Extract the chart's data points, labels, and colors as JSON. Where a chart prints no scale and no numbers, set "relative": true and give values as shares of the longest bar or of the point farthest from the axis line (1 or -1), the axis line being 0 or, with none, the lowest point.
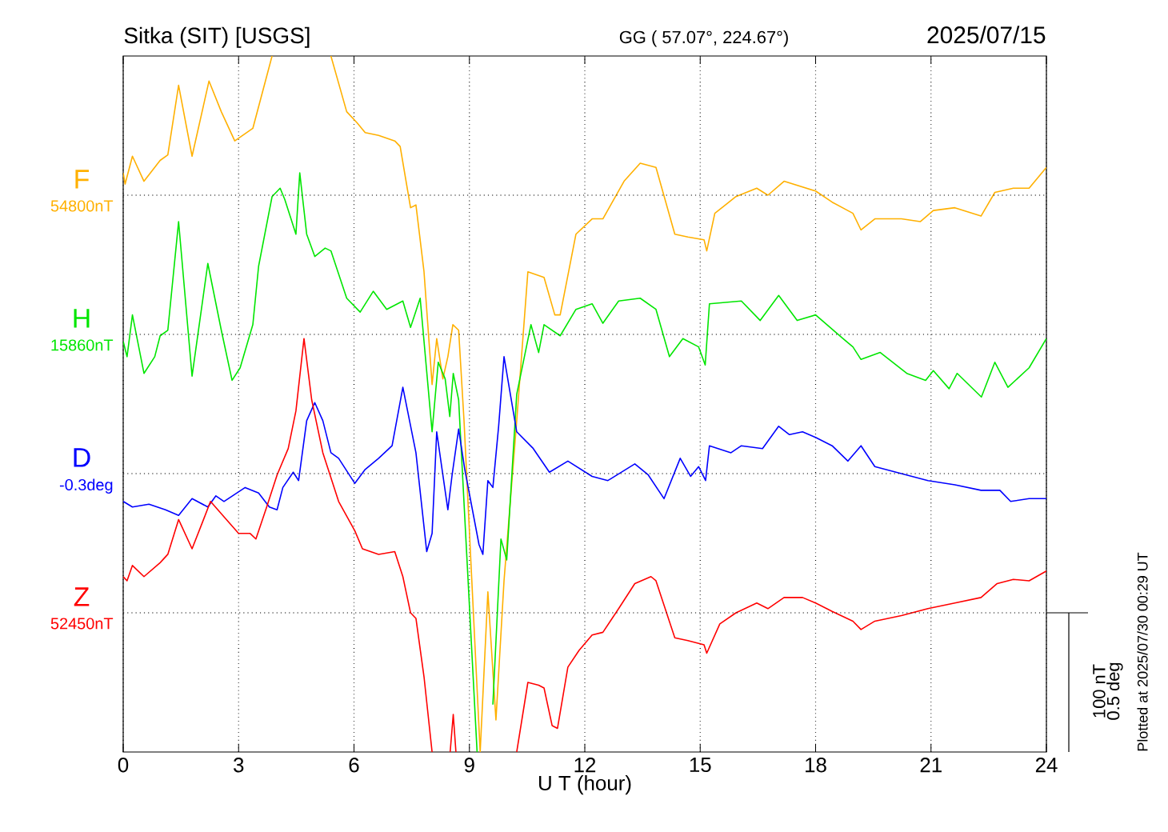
{
  "chart_data": {
    "type": "line",
    "relative": true,
    "title": "Sitka (SIT)  [USGS]",
    "subtitle": "GG ( 57.07°, 224.67°)",
    "xlabel": "U T (hour)",
    "annotations": [
      "2025/07/15",
      "100 nT",
      "0.5 deg",
      "Plotted at 2025/07/30 00:29 UT"
    ],
    "xlim": [
      0,
      24
    ],
    "grid": "x",
    "xticks": [
      0,
      3,
      6,
      9,
      12,
      15,
      18,
      21,
      24
    ],
    "ref_lines": [
      {
        "axis": "y",
        "value": 0.8,
        "label": "54800nT",
        "line_style": "dotted"
      },
      {
        "axis": "y",
        "value": 0.6,
        "label": "15860nT",
        "line_style": "dotted"
      },
      {
        "axis": "y",
        "value": 0.4,
        "label": "-0.3deg",
        "line_style": "dotted"
      },
      {
        "axis": "y",
        "value": 0.2,
        "label": "52450nT",
        "line_style": "dotted"
      }
    ],
    "series": [
      {
        "name": "F",
        "color": "#ffb000",
        "x": [
          0,
          0.05,
          0.24,
          0.54,
          0.96,
          1.16,
          1.44,
          1.79,
          2.23,
          2.55,
          2.9,
          3.37,
          3.87,
          4.6,
          5.4,
          5.81,
          6.08,
          6.29,
          6.64,
          7.06,
          7.2,
          7.47,
          7.61,
          7.82,
          8.03,
          8.15,
          8.31,
          8.44,
          8.57,
          8.72,
          8.86,
          9.28,
          9.48,
          9.69,
          9.9,
          10.23,
          10.52,
          10.94,
          11.22,
          11.36,
          11.77,
          12.19,
          12.47,
          13.02,
          13.44,
          13.85,
          14.34,
          14.68,
          15.1,
          15.17,
          15.38,
          15.93,
          16.47,
          16.76,
          17.18,
          18.0,
          18.43,
          18.97,
          19.18,
          19.54,
          20.23,
          20.72,
          21.06,
          21.62,
          22.3,
          22.66,
          23.14,
          23.55,
          24
        ],
        "values": [
          0.832,
          0.816,
          0.856,
          0.82,
          0.85,
          0.858,
          0.958,
          0.856,
          0.964,
          0.92,
          0.878,
          0.896,
          1,
          null,
          1,
          0.92,
          0.904,
          0.89,
          0.886,
          0.878,
          0.87,
          0.782,
          0.786,
          0.69,
          0.528,
          0.594,
          0.536,
          0.568,
          0.614,
          0.606,
          0.476,
          0,
          0.23,
          0.046,
          0.246,
          0.476,
          0.69,
          0.682,
          0.628,
          0.628,
          0.744,
          0.766,
          0.766,
          0.82,
          0.846,
          0.84,
          0.744,
          0.74,
          0.736,
          0.72,
          0.774,
          0.798,
          0.81,
          0.8,
          0.82,
          0.806,
          0.79,
          0.774,
          0.75,
          0.766,
          0.766,
          0.762,
          0.778,
          0.782,
          0.77,
          0.804,
          0.81,
          0.81,
          0.84
        ]
      },
      {
        "name": "H",
        "color": "#00e600",
        "x": [
          0,
          0.1,
          0.24,
          0.54,
          0.82,
          0.96,
          1.16,
          1.44,
          1.79,
          2.2,
          2.55,
          2.83,
          3.04,
          3.37,
          3.52,
          3.87,
          4.08,
          4.2,
          4.49,
          4.59,
          4.77,
          4.98,
          5.25,
          5.4,
          5.81,
          6.16,
          6.5,
          6.85,
          7.27,
          7.47,
          7.72,
          8.03,
          8.19,
          8.37,
          8.49,
          8.58,
          8.72,
          8.93,
          9.2,
          9.4,
          9.61,
          9.82,
          9.97,
          10.23,
          10.6,
          10.8,
          10.94,
          11.36,
          11.77,
          12.19,
          12.47,
          12.88,
          13.44,
          13.85,
          14.2,
          14.55,
          14.96,
          15.13,
          15.24,
          16.07,
          16.56,
          17.04,
          17.52,
          18.0,
          18.71,
          18.97,
          19.18,
          19.68,
          20.37,
          20.86,
          21.06,
          21.47,
          21.68,
          22.31,
          22.66,
          23.0,
          23.55,
          24
        ],
        "values": [
          0.59,
          0.568,
          0.628,
          0.544,
          0.568,
          0.598,
          0.606,
          0.762,
          0.54,
          0.702,
          0.606,
          0.534,
          0.552,
          0.614,
          0.698,
          0.798,
          0.81,
          0.794,
          0.744,
          0.832,
          0.744,
          0.712,
          0.724,
          0.72,
          0.652,
          0.632,
          0.662,
          0.636,
          0.648,
          0.61,
          0.652,
          0.46,
          0.56,
          0.536,
          0.482,
          0.544,
          0.506,
          0.284,
          0,
          null,
          0.068,
          0.306,
          0.276,
          0.514,
          0.614,
          0.574,
          0.614,
          0.598,
          0.636,
          0.644,
          0.616,
          0.648,
          0.652,
          0.636,
          0.568,
          0.594,
          0.582,
          0.556,
          0.644,
          0.648,
          0.62,
          0.656,
          0.62,
          0.628,
          0.594,
          0.582,
          0.564,
          0.574,
          0.544,
          0.534,
          0.548,
          0.522,
          0.544,
          0.51,
          0.56,
          0.524,
          0.552,
          0.594
        ]
      },
      {
        "name": "D",
        "color": "#0000ff",
        "x": [
          0,
          0.24,
          0.67,
          1.1,
          1.44,
          1.79,
          2.2,
          2.41,
          2.62,
          3.17,
          3.52,
          3.8,
          4.0,
          4.15,
          4.42,
          4.56,
          4.77,
          4.98,
          5.19,
          5.4,
          5.6,
          6.02,
          6.29,
          6.64,
          6.99,
          7.27,
          7.61,
          7.89,
          8.03,
          8.15,
          8.31,
          8.44,
          8.55,
          8.72,
          8.88,
          9.25,
          9.35,
          9.48,
          9.61,
          9.76,
          9.9,
          10.04,
          10.23,
          10.66,
          11.08,
          11.56,
          12.19,
          12.6,
          13.3,
          13.65,
          14.06,
          14.48,
          14.75,
          14.96,
          15.14,
          15.24,
          15.8,
          16.07,
          16.62,
          17.04,
          17.32,
          17.66,
          18.0,
          18.43,
          18.84,
          19.18,
          19.54,
          20.09,
          20.92,
          21.62,
          22.3,
          22.79,
          23.07,
          23.55,
          24
        ],
        "values": [
          0.36,
          0.352,
          0.356,
          0.348,
          0.34,
          0.364,
          0.352,
          0.368,
          0.36,
          0.38,
          0.372,
          0.352,
          0.348,
          0.38,
          0.402,
          0.39,
          0.476,
          0.502,
          0.476,
          0.43,
          0.422,
          0.386,
          0.406,
          0.422,
          0.44,
          0.524,
          0.43,
          0.288,
          0.314,
          0.46,
          0.398,
          0.348,
          0.398,
          0.464,
          0.406,
          0.298,
          0.284,
          0.39,
          0.38,
          0.468,
          0.568,
          0.522,
          0.46,
          0.436,
          0.402,
          0.418,
          0.396,
          0.39,
          0.414,
          0.398,
          0.364,
          0.422,
          0.396,
          0.41,
          0.39,
          0.44,
          0.43,
          0.44,
          0.436,
          0.468,
          0.456,
          0.46,
          0.452,
          0.44,
          0.418,
          0.44,
          0.41,
          0.402,
          0.39,
          0.384,
          0.376,
          0.376,
          0.36,
          0.364,
          0.364
        ]
      },
      {
        "name": "Z",
        "color": "#ff0000",
        "x": [
          0,
          0.1,
          0.24,
          0.54,
          0.96,
          1.16,
          1.44,
          1.79,
          2.06,
          2.27,
          2.62,
          3.0,
          3.3,
          3.45,
          3.73,
          4.0,
          4.29,
          4.49,
          4.7,
          4.9,
          5.19,
          5.6,
          6.02,
          6.22,
          6.64,
          7.06,
          7.27,
          7.47,
          7.61,
          7.82,
          8.03,
          8.25,
          8.5,
          8.58,
          8.65,
          9.5,
          10.23,
          10.52,
          10.8,
          10.94,
          11.15,
          11.29,
          11.56,
          11.85,
          12.19,
          12.47,
          12.88,
          13.3,
          13.72,
          13.85,
          14.34,
          14.68,
          15.1,
          15.17,
          15.51,
          15.93,
          16.47,
          16.76,
          17.18,
          17.66,
          18.0,
          18.43,
          18.97,
          19.18,
          19.54,
          20.23,
          20.92,
          21.62,
          22.3,
          22.72,
          23.14,
          23.55,
          24
        ],
        "values": [
          0.252,
          0.246,
          0.268,
          0.252,
          0.272,
          0.284,
          0.334,
          0.292,
          0.33,
          0.36,
          0.338,
          0.314,
          0.314,
          0.306,
          0.352,
          0.398,
          0.436,
          0.49,
          0.594,
          0.506,
          0.43,
          0.36,
          0.318,
          0.292,
          0.284,
          0.288,
          0.252,
          0.2,
          0.192,
          0.108,
          0,
          null,
          0,
          0.054,
          0,
          null,
          0,
          0.1,
          0.096,
          0.092,
          0.038,
          0.034,
          0.122,
          0.146,
          0.168,
          0.172,
          0.206,
          0.242,
          0.252,
          0.246,
          0.164,
          0.16,
          0.154,
          0.142,
          0.184,
          0.2,
          0.214,
          0.206,
          0.222,
          0.222,
          0.214,
          0.202,
          0.188,
          0.176,
          0.188,
          0.196,
          0.206,
          0.214,
          0.222,
          0.242,
          0.248,
          0.246,
          0.26
        ]
      }
    ]
  }
}
